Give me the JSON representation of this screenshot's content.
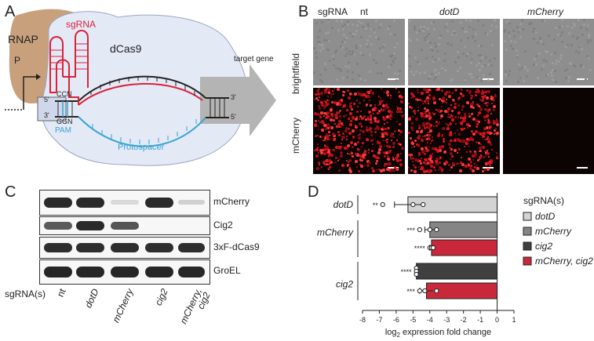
{
  "panels": {
    "a": "A",
    "b": "B",
    "c": "C",
    "d": "D"
  },
  "schematic": {
    "rnap": "RNAP",
    "promoter": "P",
    "sgrna": "sgRNA",
    "dcas9": "dCas9",
    "target_gene": "target gene",
    "five_prime_left": "5'",
    "three_prime_left": "3'",
    "three_prime_right": "3'",
    "five_prime_right": "5'",
    "pam_top": "CCN",
    "pam_bottom": "GGN",
    "pam": "PAM",
    "protospacer": "Protospacer",
    "colors": {
      "rnap": "#c9a07c",
      "dcas9": "#e4e9f6",
      "sgrna": "#d9233a",
      "protospacer": "#3aa3d4",
      "arrow": "#b4b4b4"
    }
  },
  "microscopy": {
    "sgrna_label": "sgRNA",
    "columns": [
      "nt",
      "dotD",
      "mCherry"
    ],
    "rows": [
      "brightfield",
      "mCherry"
    ]
  },
  "western": {
    "rows": [
      "mCherry",
      "Cig2",
      "3xF-dCas9",
      "GroEL"
    ],
    "sgrna_label": "sgRNA(s)",
    "lanes": [
      "nt",
      "dotD",
      "mCherry",
      "cig2",
      "mCherry,\ncig2"
    ]
  },
  "chart_data": {
    "type": "bar",
    "orientation": "horizontal",
    "xlabel": "log2 expression fold change",
    "xlim": [
      -8,
      1
    ],
    "xticks": [
      -8,
      -7,
      -6,
      -5,
      -4,
      -3,
      -2,
      -1,
      0,
      1
    ],
    "group_labels": [
      "dotD",
      "mCherry",
      "cig2"
    ],
    "legend_title": "sgRNA(s)",
    "series": [
      {
        "name": "dotD",
        "group": "dotD",
        "value": -5.3,
        "error": 0.8,
        "points": [
          -6.8,
          -5.0,
          -4.4
        ],
        "significance": "**",
        "color": "#d3d3d3"
      },
      {
        "name": "mCherry",
        "group": "mCherry",
        "value": -4.0,
        "error": 0.3,
        "points": [
          -4.6,
          -4.0,
          -3.6
        ],
        "significance": "***",
        "color": "#858585"
      },
      {
        "name": "mCherry, cig2",
        "group": "mCherry",
        "value": -3.9,
        "error": 0.1,
        "points": [
          -4.0,
          -3.9,
          -3.8
        ],
        "significance": "****",
        "color": "#c8283a"
      },
      {
        "name": "cig2",
        "group": "cig2",
        "value": -4.8,
        "error": 0.05,
        "points": [
          -4.8,
          -4.8,
          -4.8
        ],
        "significance": "****",
        "color": "#404040"
      },
      {
        "name": "mCherry, cig2",
        "group": "cig2",
        "value": -4.2,
        "error": 0.4,
        "points": [
          -4.6,
          -4.3,
          -3.6
        ],
        "significance": "***",
        "color": "#c8283a"
      }
    ],
    "legend": [
      {
        "name": "dotD",
        "color": "#d3d3d3"
      },
      {
        "name": "mCherry",
        "color": "#858585"
      },
      {
        "name": "cig2",
        "color": "#404040"
      },
      {
        "name": "mCherry, cig2",
        "color": "#c8283a"
      }
    ]
  }
}
